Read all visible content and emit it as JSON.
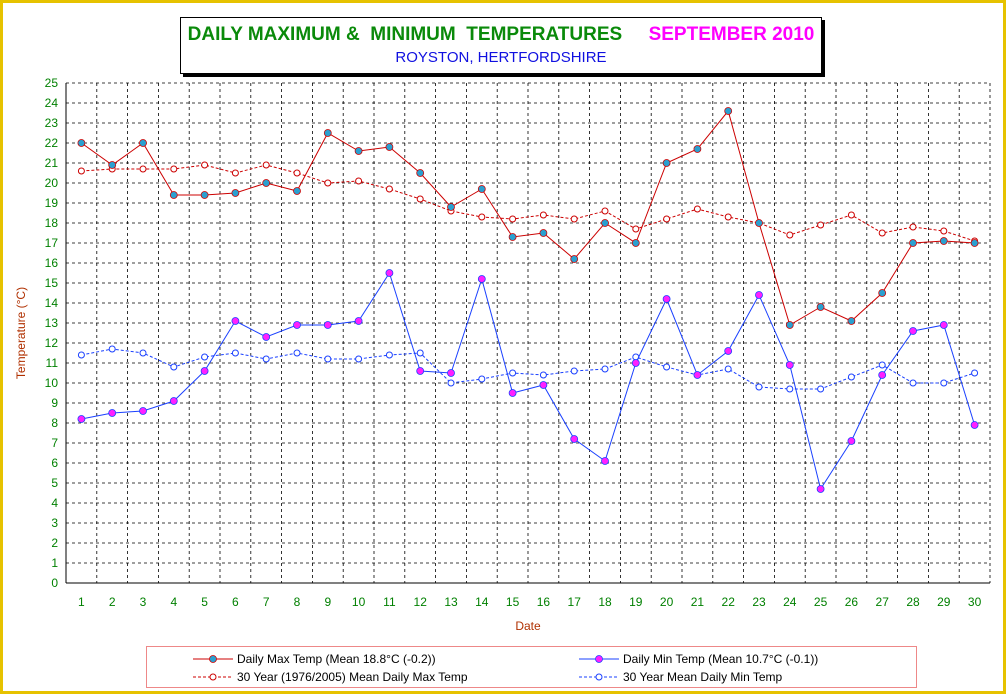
{
  "title": {
    "main": "DAILY MAXIMUM &  MINIMUM  TEMPERATURES",
    "month": "SEPTEMBER 2010",
    "location": "ROYSTON, HERTFORDSHIRE"
  },
  "colors": {
    "max": "#cc0000",
    "min": "#1a40ff",
    "max_marker": "#2aa0d0",
    "min_marker": "#ff20ff",
    "axis_text_x": "#008000",
    "axis_text_y": "#008000",
    "axis_label": "#b03000",
    "frame": "#e6c200"
  },
  "chart_data": {
    "type": "line",
    "title": "DAILY MAXIMUM &  MINIMUM  TEMPERATURES  SEPTEMBER 2010",
    "subtitle": "ROYSTON, HERTFORDSHIRE",
    "xlabel": "Date",
    "ylabel": "Temperature (°C)",
    "x": [
      1,
      2,
      3,
      4,
      5,
      6,
      7,
      8,
      9,
      10,
      11,
      12,
      13,
      14,
      15,
      16,
      17,
      18,
      19,
      20,
      21,
      22,
      23,
      24,
      25,
      26,
      27,
      28,
      29,
      30
    ],
    "ylim": [
      0,
      25
    ],
    "yticks": [
      0,
      1,
      2,
      3,
      4,
      5,
      6,
      7,
      8,
      9,
      10,
      11,
      12,
      13,
      14,
      15,
      16,
      17,
      18,
      19,
      20,
      21,
      22,
      23,
      24,
      25
    ],
    "grid": true,
    "legend_position": "bottom",
    "series": [
      {
        "name": "Daily Max Temp (Mean 18.8°C (-0.2))",
        "style": "solid",
        "values": [
          22.0,
          20.9,
          22.0,
          19.4,
          19.4,
          19.5,
          20.0,
          19.6,
          22.5,
          21.6,
          21.8,
          20.5,
          18.8,
          19.7,
          17.3,
          17.5,
          16.2,
          18.0,
          17.0,
          21.0,
          21.7,
          23.6,
          18.0,
          12.9,
          13.8,
          13.1,
          14.5,
          17.0,
          17.1,
          17.0
        ]
      },
      {
        "name": "Daily Min Temp (Mean 10.7°C (-0.1))",
        "style": "solid",
        "values": [
          8.2,
          8.5,
          8.6,
          9.1,
          10.6,
          13.1,
          12.3,
          12.9,
          12.9,
          13.1,
          15.5,
          10.6,
          10.5,
          15.2,
          9.5,
          9.9,
          7.2,
          6.1,
          11.0,
          14.2,
          10.4,
          11.6,
          14.4,
          10.9,
          4.7,
          7.1,
          10.4,
          12.6,
          12.9,
          7.9
        ]
      },
      {
        "name": "30 Year (1976/2005) Mean Daily Max Temp",
        "style": "dashed",
        "values": [
          20.6,
          20.7,
          20.7,
          20.7,
          20.9,
          20.5,
          20.9,
          20.5,
          20.0,
          20.1,
          19.7,
          19.2,
          18.6,
          18.3,
          18.2,
          18.4,
          18.2,
          18.6,
          17.7,
          18.2,
          18.7,
          18.3,
          18.0,
          17.4,
          17.9,
          18.4,
          17.5,
          17.8,
          17.6,
          17.1
        ]
      },
      {
        "name": "30 Year Mean Daily Min Temp",
        "style": "dashed",
        "values": [
          11.4,
          11.7,
          11.5,
          10.8,
          11.3,
          11.5,
          11.2,
          11.5,
          11.2,
          11.2,
          11.4,
          11.5,
          10.0,
          10.2,
          10.5,
          10.4,
          10.6,
          10.7,
          11.3,
          10.8,
          10.4,
          10.7,
          9.8,
          9.7,
          9.7,
          10.3,
          10.9,
          10.0,
          10.0,
          10.5
        ]
      }
    ]
  }
}
